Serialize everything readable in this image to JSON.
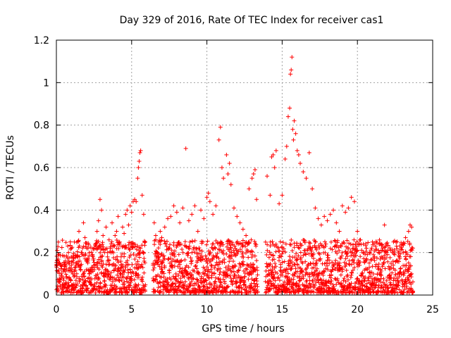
{
  "chart_data": {
    "type": "scatter",
    "title": "Day 329 of 2016, Rate Of TEC Index for receiver cas1",
    "xlabel": "GPS time / hours",
    "ylabel": "ROTI / TECUs",
    "xlim": [
      0,
      25
    ],
    "ylim": [
      0,
      1.2
    ],
    "xticks": [
      0,
      5,
      10,
      15,
      20,
      25
    ],
    "xtick_labels": [
      "0",
      "5",
      "10",
      "15",
      "20",
      "25"
    ],
    "yticks": [
      0,
      0.2,
      0.4,
      0.6,
      0.8,
      1,
      1.2
    ],
    "ytick_labels": [
      "0",
      "0.2",
      "0.4",
      "0.6",
      "0.8",
      "1",
      "1.2"
    ],
    "grid": true,
    "marker": "+",
    "color": "#ff0000",
    "series": [
      {
        "name": "cas1",
        "points": [
          [
            0.05,
            0.14
          ],
          [
            0.1,
            0.11
          ],
          [
            0.2,
            0.06
          ],
          [
            0.3,
            0.09
          ],
          [
            0.4,
            0.05
          ],
          [
            0.5,
            0.12
          ],
          [
            0.6,
            0.16
          ],
          [
            0.7,
            0.08
          ],
          [
            0.8,
            0.2
          ],
          [
            0.9,
            0.13
          ],
          [
            1.0,
            0.22
          ],
          [
            1.1,
            0.1
          ],
          [
            1.2,
            0.25
          ],
          [
            1.3,
            0.15
          ],
          [
            1.4,
            0.18
          ],
          [
            1.5,
            0.3
          ],
          [
            1.6,
            0.12
          ],
          [
            1.7,
            0.2
          ],
          [
            1.8,
            0.34
          ],
          [
            1.9,
            0.27
          ],
          [
            2.0,
            0.16
          ],
          [
            2.1,
            0.22
          ],
          [
            2.2,
            0.1
          ],
          [
            2.4,
            0.19
          ],
          [
            2.5,
            0.13
          ],
          [
            2.6,
            0.24
          ],
          [
            2.7,
            0.3
          ],
          [
            2.8,
            0.35
          ],
          [
            2.9,
            0.45
          ],
          [
            3.0,
            0.4
          ],
          [
            3.1,
            0.28
          ],
          [
            3.2,
            0.2
          ],
          [
            3.3,
            0.32
          ],
          [
            3.4,
            0.18
          ],
          [
            3.5,
            0.26
          ],
          [
            3.6,
            0.22
          ],
          [
            3.7,
            0.34
          ],
          [
            3.8,
            0.14
          ],
          [
            3.9,
            0.28
          ],
          [
            4.0,
            0.3
          ],
          [
            4.1,
            0.37
          ],
          [
            4.2,
            0.25
          ],
          [
            4.3,
            0.18
          ],
          [
            4.4,
            0.32
          ],
          [
            4.5,
            0.29
          ],
          [
            4.6,
            0.38
          ],
          [
            4.7,
            0.4
          ],
          [
            4.8,
            0.33
          ],
          [
            4.9,
            0.42
          ],
          [
            5.0,
            0.39
          ],
          [
            5.1,
            0.44
          ],
          [
            5.2,
            0.45
          ],
          [
            5.3,
            0.44
          ],
          [
            5.4,
            0.55
          ],
          [
            5.45,
            0.6
          ],
          [
            5.5,
            0.63
          ],
          [
            5.55,
            0.67
          ],
          [
            5.6,
            0.68
          ],
          [
            5.7,
            0.47
          ],
          [
            5.8,
            0.38
          ],
          [
            6.5,
            0.34
          ],
          [
            6.6,
            0.28
          ],
          [
            6.7,
            0.2
          ],
          [
            6.8,
            0.25
          ],
          [
            6.9,
            0.3
          ],
          [
            7.0,
            0.27
          ],
          [
            7.2,
            0.32
          ],
          [
            7.4,
            0.36
          ],
          [
            7.6,
            0.37
          ],
          [
            7.8,
            0.42
          ],
          [
            8.0,
            0.39
          ],
          [
            8.2,
            0.34
          ],
          [
            8.4,
            0.41
          ],
          [
            8.6,
            0.69
          ],
          [
            8.8,
            0.35
          ],
          [
            9.0,
            0.38
          ],
          [
            9.2,
            0.42
          ],
          [
            9.4,
            0.3
          ],
          [
            9.6,
            0.4
          ],
          [
            9.8,
            0.36
          ],
          [
            10.0,
            0.46
          ],
          [
            10.1,
            0.48
          ],
          [
            10.2,
            0.44
          ],
          [
            10.4,
            0.38
          ],
          [
            10.6,
            0.42
          ],
          [
            10.8,
            0.73
          ],
          [
            10.9,
            0.79
          ],
          [
            11.0,
            0.6
          ],
          [
            11.1,
            0.55
          ],
          [
            11.3,
            0.66
          ],
          [
            11.4,
            0.57
          ],
          [
            11.5,
            0.62
          ],
          [
            11.6,
            0.52
          ],
          [
            11.8,
            0.41
          ],
          [
            12.0,
            0.37
          ],
          [
            12.2,
            0.34
          ],
          [
            12.4,
            0.31
          ],
          [
            12.6,
            0.28
          ],
          [
            12.8,
            0.5
          ],
          [
            13.0,
            0.55
          ],
          [
            13.1,
            0.57
          ],
          [
            13.2,
            0.59
          ],
          [
            13.3,
            0.45
          ],
          [
            14.0,
            0.56
          ],
          [
            14.2,
            0.47
          ],
          [
            14.3,
            0.65
          ],
          [
            14.4,
            0.66
          ],
          [
            14.5,
            0.6
          ],
          [
            14.6,
            0.68
          ],
          [
            14.8,
            0.43
          ],
          [
            15.0,
            0.47
          ],
          [
            15.2,
            0.64
          ],
          [
            15.3,
            0.7
          ],
          [
            15.4,
            0.84
          ],
          [
            15.5,
            0.88
          ],
          [
            15.55,
            1.04
          ],
          [
            15.6,
            1.06
          ],
          [
            15.65,
            1.12
          ],
          [
            15.7,
            0.78
          ],
          [
            15.75,
            0.73
          ],
          [
            15.8,
            0.82
          ],
          [
            15.9,
            0.76
          ],
          [
            16.0,
            0.68
          ],
          [
            16.1,
            0.66
          ],
          [
            16.2,
            0.62
          ],
          [
            16.4,
            0.58
          ],
          [
            16.6,
            0.55
          ],
          [
            16.8,
            0.67
          ],
          [
            17.0,
            0.5
          ],
          [
            17.2,
            0.41
          ],
          [
            17.4,
            0.36
          ],
          [
            17.6,
            0.33
          ],
          [
            17.8,
            0.37
          ],
          [
            18.0,
            0.35
          ],
          [
            18.2,
            0.38
          ],
          [
            18.4,
            0.4
          ],
          [
            18.6,
            0.34
          ],
          [
            18.8,
            0.3
          ],
          [
            19.0,
            0.42
          ],
          [
            19.2,
            0.39
          ],
          [
            19.4,
            0.41
          ],
          [
            19.6,
            0.46
          ],
          [
            19.8,
            0.44
          ],
          [
            20.0,
            0.3
          ],
          [
            20.2,
            0.26
          ],
          [
            20.4,
            0.24
          ],
          [
            20.6,
            0.22
          ],
          [
            20.8,
            0.2
          ],
          [
            21.0,
            0.25
          ],
          [
            21.2,
            0.23
          ],
          [
            21.4,
            0.21
          ],
          [
            21.6,
            0.24
          ],
          [
            21.8,
            0.33
          ],
          [
            22.0,
            0.19
          ],
          [
            22.2,
            0.21
          ],
          [
            22.4,
            0.25
          ],
          [
            22.6,
            0.23
          ],
          [
            22.8,
            0.18
          ],
          [
            23.0,
            0.24
          ],
          [
            23.2,
            0.27
          ],
          [
            23.4,
            0.3
          ],
          [
            23.5,
            0.33
          ],
          [
            23.6,
            0.32
          ]
        ]
      }
    ],
    "data_gaps_hours": [
      [
        5.9,
        6.4
      ],
      [
        13.4,
        13.9
      ]
    ],
    "dense_band_note_upper": 0.25
  }
}
